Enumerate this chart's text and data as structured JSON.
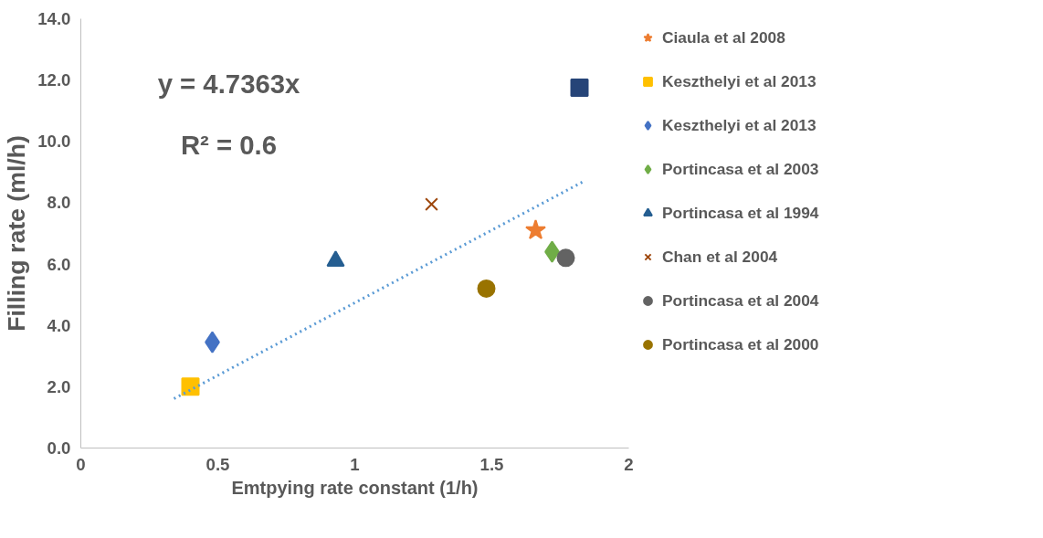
{
  "chart_data": {
    "type": "scatter",
    "xlabel": "Emtpying rate constant (1/h)",
    "ylabel": "Filling rate (ml/h)",
    "xlim": [
      0,
      2
    ],
    "xticks": [
      0,
      0.5,
      1,
      1.5,
      2
    ],
    "ylim": [
      0,
      14
    ],
    "yticks": [
      {
        "value": 0,
        "label": "0.0"
      },
      {
        "value": 2,
        "label": "2.0"
      },
      {
        "value": 4,
        "label": "4.0"
      },
      {
        "value": 6,
        "label": "6.0"
      },
      {
        "value": 8,
        "label": "8.0"
      },
      {
        "value": 10,
        "label": "10.0"
      },
      {
        "value": 12,
        "label": "12.0"
      },
      {
        "value": 14,
        "label": "14.0"
      }
    ],
    "grid": false,
    "legend": "right",
    "annotations": [
      "y = 4.7363x",
      "R² = 0.6"
    ],
    "series": [
      {
        "name": "Ciaula et al 2008",
        "color": "#ed7d31",
        "marker": "star",
        "x": [
          1.66
        ],
        "values": [
          7.1
        ]
      },
      {
        "name": "Keszthelyi et al 2013",
        "color": "#ffc000",
        "marker": "square",
        "x": [
          0.4
        ],
        "values": [
          2.0
        ]
      },
      {
        "name": "Keszthelyi et al 2013",
        "color": "#4472c4",
        "marker": "diamond",
        "x": [
          0.48
        ],
        "values": [
          3.45
        ]
      },
      {
        "name": "Portincasa et al 2003",
        "color": "#70ad47",
        "marker": "diamond",
        "x": [
          1.72
        ],
        "values": [
          6.4
        ]
      },
      {
        "name": "Portincasa et al 1994",
        "color": "#255e91",
        "marker": "triangle",
        "x": [
          0.93
        ],
        "values": [
          6.1
        ]
      },
      {
        "name": "Chan et al 2004",
        "color": "#9e480e",
        "marker": "cross",
        "x": [
          1.28
        ],
        "values": [
          7.95
        ]
      },
      {
        "name": "Portincasa et al 2004",
        "color": "#636363",
        "marker": "circle",
        "x": [
          1.77
        ],
        "values": [
          6.2
        ]
      },
      {
        "name": "Portincasa et al 2000",
        "color": "#997300",
        "marker": "circle",
        "x": [
          1.48
        ],
        "values": [
          5.2
        ]
      },
      {
        "color": "#264478",
        "marker": "square",
        "x": [
          1.82
        ],
        "values": [
          11.75
        ]
      },
      {
        "type": "line",
        "color": "#5b9bd5",
        "line_style": "dotted",
        "marker": "none",
        "x": [
          0.34,
          1.83
        ],
        "values": [
          1.61,
          8.67
        ]
      }
    ]
  }
}
